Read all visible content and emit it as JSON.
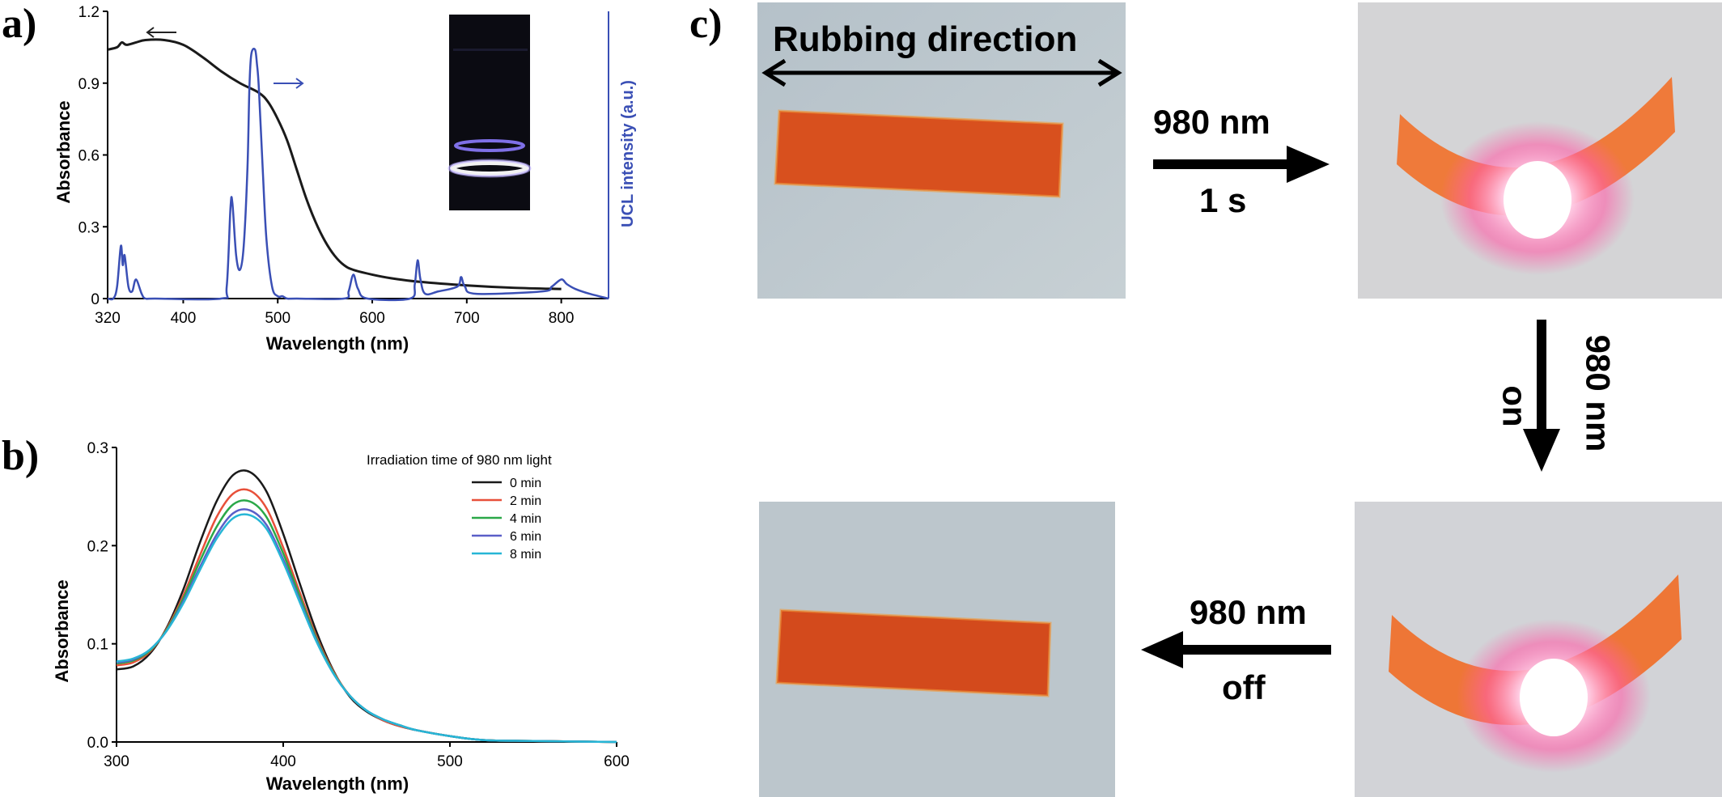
{
  "panels": {
    "a": "a)",
    "b": "b)",
    "c": "c)"
  },
  "chart_data": [
    {
      "type": "line",
      "panel": "a",
      "xlabel": "Wavelength (nm)",
      "ylabel": "Absorbance",
      "y2label": "UCL intensity (a.u.)",
      "xlim": [
        320,
        850
      ],
      "ylim": [
        0,
        1.2
      ],
      "xticks": [
        320,
        400,
        500,
        600,
        700,
        800
      ],
      "yticks": [
        "0",
        "0.3",
        "0.6",
        "0.9",
        "1.2"
      ],
      "series": [
        {
          "axis": "left",
          "color": "#1a1a1a",
          "x": [
            320,
            330,
            335,
            340,
            350,
            360,
            380,
            400,
            420,
            440,
            460,
            480,
            490,
            500,
            510,
            520,
            530,
            540,
            550,
            560,
            570,
            580,
            600,
            620,
            650,
            700,
            750,
            800
          ],
          "y": [
            1.04,
            1.05,
            1.07,
            1.06,
            1.07,
            1.08,
            1.08,
            1.06,
            1.01,
            0.95,
            0.9,
            0.86,
            0.82,
            0.75,
            0.66,
            0.54,
            0.42,
            0.32,
            0.24,
            0.18,
            0.14,
            0.12,
            0.1,
            0.085,
            0.07,
            0.055,
            0.045,
            0.04
          ]
        },
        {
          "axis": "right",
          "color": "#3a4fb5",
          "x": [
            320,
            326,
            330,
            334,
            336,
            338,
            342,
            346,
            350,
            356,
            360,
            370,
            440,
            446,
            450,
            452,
            456,
            460,
            464,
            468,
            470,
            472,
            476,
            478,
            480,
            484,
            488,
            494,
            500,
            505,
            510,
            520,
            570,
            575,
            580,
            585,
            595,
            640,
            645,
            648,
            651,
            656,
            670,
            690,
            694,
            698,
            710,
            780,
            790,
            800,
            806,
            815,
            830,
            850
          ],
          "y": [
            0.0,
            0.0,
            0.05,
            0.22,
            0.14,
            0.18,
            0.05,
            0.03,
            0.08,
            0.02,
            0.0,
            0.0,
            0.0,
            0.05,
            0.38,
            0.4,
            0.18,
            0.12,
            0.22,
            0.55,
            0.88,
            1.02,
            1.04,
            0.98,
            0.88,
            0.55,
            0.25,
            0.05,
            0.01,
            0.01,
            0.0,
            0.0,
            0.0,
            0.03,
            0.1,
            0.04,
            0.0,
            0.0,
            0.06,
            0.16,
            0.08,
            0.02,
            0.03,
            0.05,
            0.09,
            0.05,
            0.02,
            0.03,
            0.05,
            0.08,
            0.06,
            0.04,
            0.02,
            0.0
          ]
        }
      ]
    },
    {
      "type": "line",
      "panel": "b",
      "xlabel": "Wavelength  (nm)",
      "ylabel": "Absorbance",
      "xlim": [
        300,
        600
      ],
      "ylim": [
        0,
        0.3
      ],
      "xticks": [
        300,
        400,
        500,
        600
      ],
      "yticks": [
        "0.0",
        "0.1",
        "0.2",
        "0.3"
      ],
      "legend_title": "Irradiation time of 980 nm light",
      "legend_position": "top-right",
      "x": [
        300,
        310,
        320,
        330,
        340,
        350,
        360,
        370,
        380,
        390,
        400,
        410,
        420,
        430,
        440,
        450,
        460,
        470,
        480,
        500,
        520,
        550,
        600
      ],
      "series": [
        {
          "name": "0  min",
          "color": "#1a1a1a",
          "peak": 0.275,
          "y": [
            0.074,
            0.077,
            0.09,
            0.116,
            0.155,
            0.203,
            0.245,
            0.272,
            0.275,
            0.255,
            0.212,
            0.161,
            0.112,
            0.073,
            0.046,
            0.031,
            0.022,
            0.016,
            0.012,
            0.006,
            0.002,
            0.001,
            0.0
          ]
        },
        {
          "name": "2  min",
          "color": "#e8503a",
          "peak": 0.256,
          "y": [
            0.078,
            0.081,
            0.092,
            0.115,
            0.149,
            0.19,
            0.229,
            0.253,
            0.256,
            0.238,
            0.198,
            0.152,
            0.107,
            0.072,
            0.047,
            0.032,
            0.022,
            0.016,
            0.012,
            0.006,
            0.002,
            0.001,
            0.0
          ]
        },
        {
          "name": "4  min",
          "color": "#2aa848",
          "peak": 0.245,
          "y": [
            0.08,
            0.083,
            0.093,
            0.114,
            0.146,
            0.184,
            0.219,
            0.242,
            0.245,
            0.229,
            0.192,
            0.148,
            0.105,
            0.071,
            0.047,
            0.032,
            0.023,
            0.017,
            0.012,
            0.006,
            0.002,
            0.001,
            0.0
          ]
        },
        {
          "name": "6  min",
          "color": "#5a5fc8",
          "peak": 0.236,
          "y": [
            0.081,
            0.084,
            0.094,
            0.113,
            0.143,
            0.178,
            0.211,
            0.233,
            0.236,
            0.221,
            0.186,
            0.144,
            0.103,
            0.07,
            0.047,
            0.032,
            0.023,
            0.017,
            0.012,
            0.006,
            0.002,
            0.001,
            0.0
          ]
        },
        {
          "name": "8  min",
          "color": "#27b6d6",
          "peak": 0.231,
          "y": [
            0.082,
            0.085,
            0.094,
            0.113,
            0.141,
            0.175,
            0.207,
            0.228,
            0.231,
            0.217,
            0.183,
            0.142,
            0.102,
            0.07,
            0.047,
            0.032,
            0.023,
            0.017,
            0.012,
            0.006,
            0.002,
            0.001,
            0.0
          ]
        }
      ]
    }
  ],
  "photo_panel": {
    "rubbing_label": "Rubbing direction",
    "arrow1": {
      "top": "980 nm",
      "bottom": "1 s"
    },
    "arrow2": {
      "left": "on",
      "right": "980 nm"
    },
    "arrow3": {
      "top": "980 nm",
      "bottom": "off"
    }
  }
}
